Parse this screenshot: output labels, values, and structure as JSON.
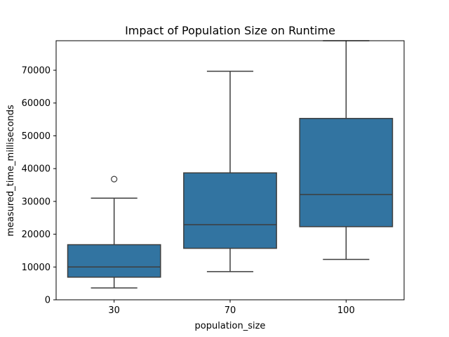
{
  "chart_data": {
    "type": "box",
    "title": "Impact of Population Size on Runtime",
    "xlabel": "population_size",
    "ylabel": "measured_time_milliseconds",
    "categories": [
      "30",
      "70",
      "100"
    ],
    "ylim": [
      0,
      79000
    ],
    "yticks": [
      0,
      10000,
      20000,
      30000,
      40000,
      50000,
      60000,
      70000
    ],
    "ytick_labels": [
      "0",
      "10000",
      "20000",
      "30000",
      "40000",
      "50000",
      "60000",
      "70000"
    ],
    "grid": false,
    "box_color": "#3274a1",
    "line_color": "#3d3d3d",
    "boxes": [
      {
        "category": "30",
        "whisker_low": 3600,
        "q1": 6900,
        "median": 10000,
        "q3": 16800,
        "whisker_high": 31000,
        "outliers": [
          36800
        ]
      },
      {
        "category": "70",
        "whisker_low": 8600,
        "q1": 15700,
        "median": 22900,
        "q3": 38700,
        "whisker_high": 69700,
        "outliers": []
      },
      {
        "category": "100",
        "whisker_low": 12300,
        "q1": 22300,
        "median": 32100,
        "q3": 55300,
        "whisker_high": 79000,
        "outliers": []
      }
    ]
  }
}
